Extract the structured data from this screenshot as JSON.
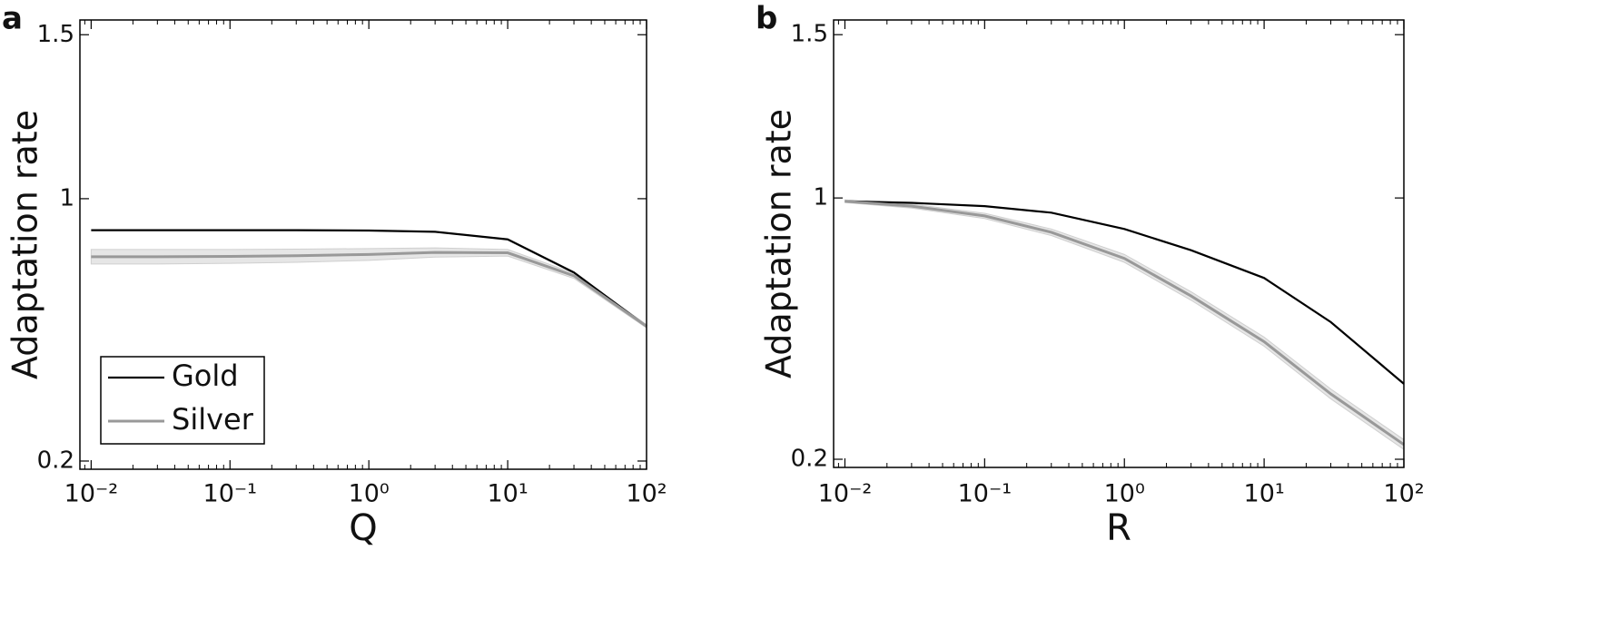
{
  "chart_data": [
    {
      "type": "line",
      "panel_label": "a",
      "x_label": "Q",
      "y_label": "Adaptation rate",
      "x": [
        0.01,
        0.03,
        0.1,
        0.3,
        1,
        3,
        10,
        30,
        100
      ],
      "series": [
        {
          "name": "Gold",
          "color": "#000000",
          "values": [
            0.904,
            0.904,
            0.904,
            0.904,
            0.903,
            0.899,
            0.876,
            0.775,
            0.611
          ]
        },
        {
          "name": "Silver",
          "color": "#999999",
          "band_color": "#e6e6e6",
          "values": [
            0.823,
            0.823,
            0.824,
            0.826,
            0.83,
            0.836,
            0.835,
            0.765,
            0.611
          ],
          "band": [
            0.022,
            0.022,
            0.021,
            0.02,
            0.018,
            0.014,
            0.01,
            0.008,
            0.005
          ]
        }
      ],
      "xlim": [
        0.0083,
        100
      ],
      "ylim": [
        0.175,
        1.545
      ],
      "log_x": true,
      "xticks": [
        {
          "value": 0.01,
          "label": "10⁻²"
        },
        {
          "value": 0.1,
          "label": "10⁻¹"
        },
        {
          "value": 1,
          "label": "10⁰"
        },
        {
          "value": 10,
          "label": "10¹"
        },
        {
          "value": 100,
          "label": "10²"
        }
      ],
      "yticks": [
        0.2,
        1,
        1.5
      ],
      "legend": "lower left"
    },
    {
      "type": "line",
      "panel_label": "b",
      "x_label": "R",
      "y_label": "Adaptation rate",
      "x": [
        0.01,
        0.03,
        0.1,
        0.3,
        1,
        3,
        10,
        30,
        100
      ],
      "series": [
        {
          "name": "Gold",
          "color": "#000000",
          "values": [
            0.99,
            0.985,
            0.975,
            0.955,
            0.905,
            0.84,
            0.755,
            0.62,
            0.431
          ]
        },
        {
          "name": "Silver",
          "color": "#999999",
          "band_color": "#e6e6e6",
          "values": [
            0.99,
            0.975,
            0.945,
            0.895,
            0.815,
            0.7,
            0.56,
            0.4,
            0.245
          ],
          "band": [
            0.004,
            0.006,
            0.008,
            0.01,
            0.012,
            0.013,
            0.014,
            0.015,
            0.015
          ]
        }
      ],
      "xlim": [
        0.0083,
        100
      ],
      "ylim": [
        0.175,
        1.545
      ],
      "log_x": true,
      "xticks": [
        {
          "value": 0.01,
          "label": "10⁻²"
        },
        {
          "value": 0.1,
          "label": "10⁻¹"
        },
        {
          "value": 1,
          "label": "10⁰"
        },
        {
          "value": 10,
          "label": "10¹"
        },
        {
          "value": 100,
          "label": "10²"
        }
      ],
      "yticks": [
        0.2,
        1,
        1.5
      ],
      "legend": false
    }
  ]
}
